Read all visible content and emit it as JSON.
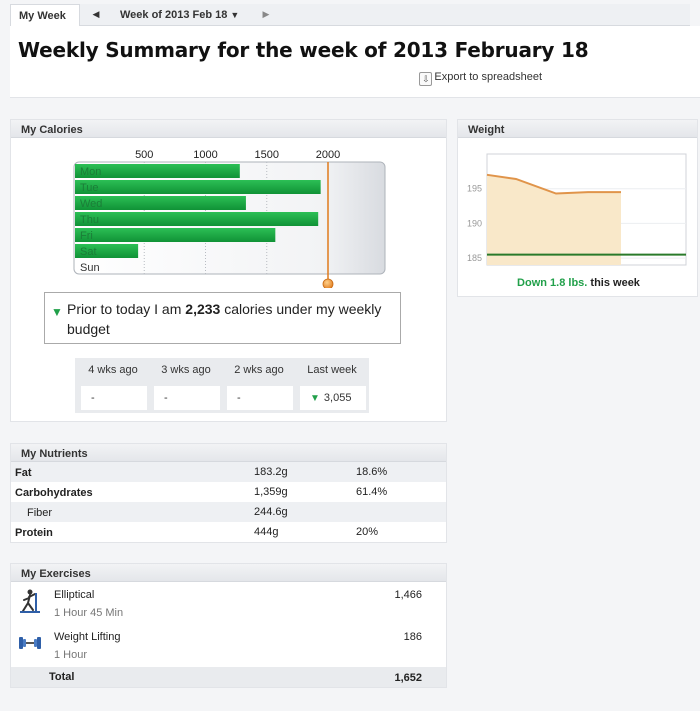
{
  "nav": {
    "tab_label": "My Week",
    "prev_icon": "triangle-left-icon",
    "week_label": "Week of 2013 Feb 18",
    "next_icon": "triangle-right-icon"
  },
  "header": {
    "title": "Weekly Summary for the week of 2013 February 18",
    "export_label": "Export to spreadsheet"
  },
  "calories": {
    "heading": "My Calories",
    "budget_label": "2000",
    "summary_prefix": "Prior to today I am",
    "summary_value": "2,233",
    "summary_suffix": "calories under my weekly budget",
    "history": [
      {
        "label": "4 wks ago",
        "value": "-"
      },
      {
        "label": "3 wks ago",
        "value": "-"
      },
      {
        "label": "2 wks ago",
        "value": "-"
      },
      {
        "label": "Last week",
        "value": "3,055"
      }
    ],
    "colors": {
      "bar": "#17a043",
      "budget_line": "#e07b1d",
      "down_arrow": "#21a04a"
    }
  },
  "chart_data": [
    {
      "type": "bar",
      "orientation": "horizontal",
      "categories": [
        "Mon",
        "Tue",
        "Wed",
        "Thu",
        "Fri",
        "Sat",
        "Sun"
      ],
      "values": [
        1280,
        1940,
        1330,
        1920,
        1570,
        450,
        0
      ],
      "x_ticks": [
        "500",
        "1000",
        "1500",
        "2000"
      ],
      "xlim": [
        0,
        2500
      ],
      "budget": 2000,
      "grid": true
    },
    {
      "type": "area",
      "title": "Weight",
      "x": [
        0,
        1,
        2,
        3,
        4
      ],
      "values": [
        197,
        196.4,
        194.3,
        194.5,
        194.5
      ],
      "baseline": 185.5,
      "y_ticks": [
        "195",
        "190",
        "185"
      ],
      "ylim": [
        184,
        200
      ],
      "colors": {
        "line": "#e0944a",
        "fill": "#f9e8c9",
        "baseline": "#2a7a2a"
      }
    }
  ],
  "weight": {
    "heading": "Weight",
    "change_value": "Down 1.8 lbs.",
    "change_suffix": "this week"
  },
  "nutrients": {
    "heading": "My Nutrients",
    "rows": [
      {
        "name": "Fat",
        "amount": "183.2g",
        "pct": "18.6%"
      },
      {
        "name": "Carbohydrates",
        "amount": "1,359g",
        "pct": "61.4%"
      },
      {
        "name": "Fiber",
        "amount": "244.6g",
        "pct": ""
      },
      {
        "name": "Protein",
        "amount": "444g",
        "pct": "20%"
      }
    ]
  },
  "exercises": {
    "heading": "My Exercises",
    "items": [
      {
        "name": "Elliptical",
        "duration": "1 Hour 45 Min",
        "calories": "1,466",
        "icon": "elliptical-icon"
      },
      {
        "name": "Weight Lifting",
        "duration": "1 Hour",
        "calories": "186",
        "icon": "dumbbell-icon"
      }
    ],
    "total_label": "Total",
    "total_value": "1,652"
  }
}
